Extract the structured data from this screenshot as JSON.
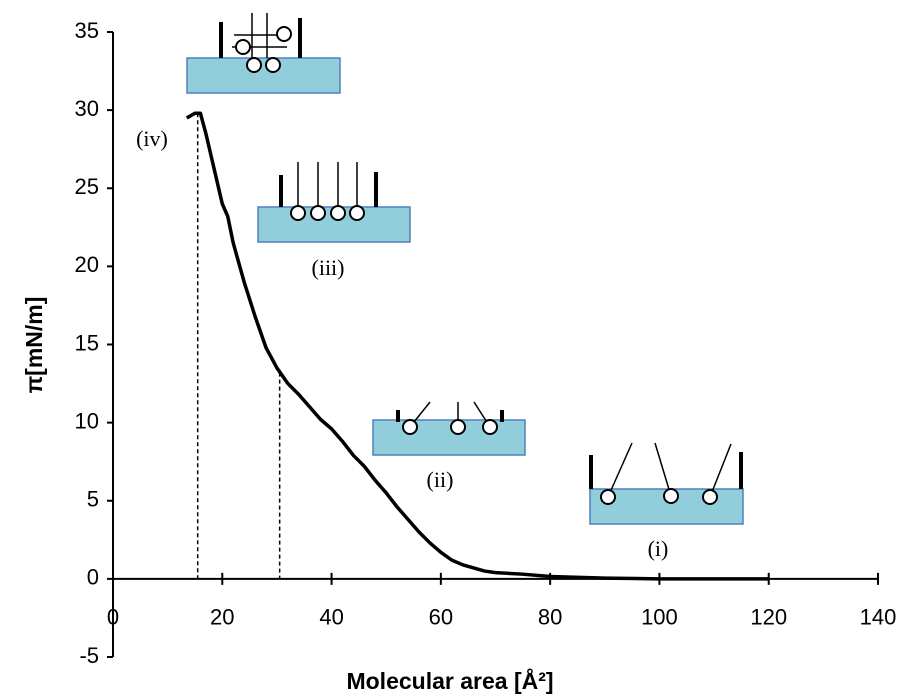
{
  "chart_data": {
    "type": "line",
    "x_label": "Molecular area [Å²]",
    "y_label": "π[mN/m]",
    "x": [
      13.5,
      15,
      16,
      17,
      18,
      19,
      20,
      21,
      22,
      24,
      26,
      28,
      30,
      32,
      34,
      36,
      38,
      40,
      42,
      44,
      46,
      48,
      50,
      52,
      54,
      56,
      58,
      60,
      62,
      64,
      66,
      68,
      70,
      75,
      80,
      90,
      100,
      110,
      120
    ],
    "values": [
      29.5,
      29.8,
      29.8,
      28.5,
      27,
      25.5,
      24,
      23.2,
      21.5,
      19,
      16.8,
      14.8,
      13.5,
      12.5,
      11.8,
      11,
      10.2,
      9.6,
      8.8,
      7.9,
      7.2,
      6.3,
      5.5,
      4.6,
      3.8,
      3.0,
      2.3,
      1.7,
      1.2,
      0.9,
      0.7,
      0.5,
      0.4,
      0.3,
      0.15,
      0.05,
      0,
      0,
      0
    ],
    "color": "#000000",
    "xlim": [
      0,
      140
    ],
    "xticks": [
      0,
      20,
      40,
      60,
      80,
      100,
      120,
      140
    ],
    "ylim": [
      -5,
      35
    ],
    "yticks": [
      -5,
      0,
      5,
      10,
      15,
      20,
      25,
      30,
      35
    ],
    "reference_lines": [
      {
        "x": 15.5,
        "y": 29.8
      },
      {
        "x": 30.5,
        "y": 13.2
      }
    ],
    "annotations": [
      "(i)",
      "(ii)",
      "(iii)",
      "(iv)"
    ],
    "grid": false
  }
}
